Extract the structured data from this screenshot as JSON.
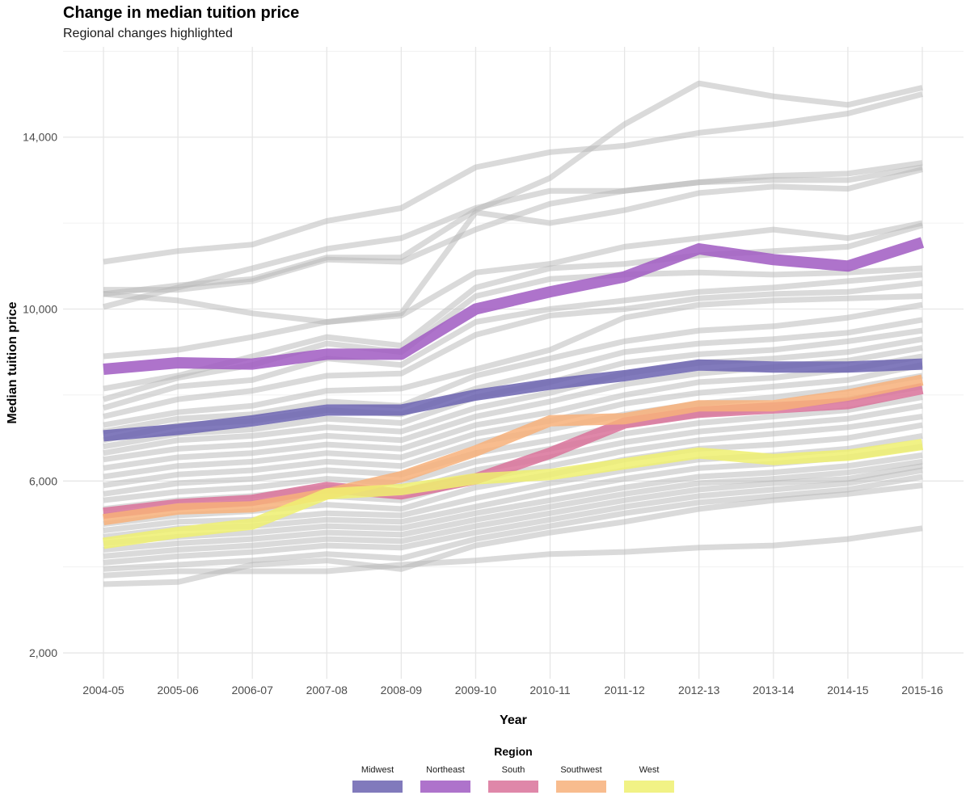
{
  "chart_data": {
    "type": "line",
    "title": "Change in median tuition price",
    "subtitle": "Regional changes highlighted",
    "xlabel": "Year",
    "ylabel": "Median tuition price",
    "categories": [
      "2004-05",
      "2005-06",
      "2006-07",
      "2007-08",
      "2008-09",
      "2009-10",
      "2010-11",
      "2011-12",
      "2012-13",
      "2013-14",
      "2014-15",
      "2015-16"
    ],
    "ylim": [
      1400,
      16100
    ],
    "yticks": [
      2000,
      6000,
      10000,
      14000
    ],
    "ytick_labels": [
      "2,000",
      "6,000",
      "10,000",
      "14,000"
    ],
    "grid": true,
    "legend": {
      "title": "Region",
      "position": "bottom"
    },
    "series": [
      {
        "name": "Midwest",
        "color": "#6B63B0",
        "values": [
          7050,
          7200,
          7400,
          7650,
          7650,
          8000,
          8250,
          8450,
          8700,
          8650,
          8650,
          8720
        ]
      },
      {
        "name": "Northeast",
        "color": "#A05AC2",
        "values": [
          8600,
          8750,
          8720,
          8950,
          8950,
          10000,
          10400,
          10750,
          11400,
          11150,
          11000,
          11550
        ]
      },
      {
        "name": "South",
        "color": "#D9729A",
        "values": [
          5250,
          5450,
          5550,
          5850,
          5700,
          6050,
          6650,
          7350,
          7600,
          7700,
          7800,
          8150
        ]
      },
      {
        "name": "Southwest",
        "color": "#F7B07A",
        "values": [
          5100,
          5350,
          5400,
          5700,
          6100,
          6700,
          7400,
          7450,
          7750,
          7750,
          8000,
          8350
        ]
      },
      {
        "name": "West",
        "color": "#EEF070",
        "values": [
          4550,
          4800,
          5000,
          5700,
          5800,
          6050,
          6150,
          6400,
          6650,
          6500,
          6600,
          6850
        ]
      }
    ],
    "background_series": [
      [
        11100,
        11350,
        11500,
        12050,
        12350,
        13300,
        13650,
        13800,
        14100,
        14300,
        14550,
        15000
      ],
      [
        10350,
        10550,
        10700,
        11200,
        11200,
        12300,
        13050,
        14300,
        15250,
        14950,
        14750,
        15150
      ],
      [
        10050,
        10500,
        10950,
        11400,
        11650,
        12350,
        12750,
        12750,
        12950,
        13100,
        13150,
        13400
      ],
      [
        10450,
        10450,
        10650,
        11150,
        11100,
        11850,
        12450,
        12750,
        12950,
        13000,
        13000,
        13300
      ],
      [
        10350,
        10200,
        9900,
        9700,
        9900,
        12250,
        12000,
        12300,
        12700,
        12850,
        12800,
        13250
      ],
      [
        8900,
        9050,
        9350,
        9700,
        9850,
        10850,
        11050,
        11450,
        11650,
        11850,
        11650,
        12000
      ],
      [
        8150,
        8450,
        8900,
        9350,
        9150,
        10500,
        10950,
        11050,
        11250,
        11350,
        11450,
        11950
      ],
      [
        7900,
        8400,
        8700,
        9200,
        9000,
        10300,
        10700,
        10800,
        10850,
        10800,
        10850,
        10950
      ],
      [
        7700,
        8200,
        8350,
        8850,
        8700,
        9700,
        10000,
        10200,
        10400,
        10500,
        10650,
        10800
      ],
      [
        7500,
        7900,
        8100,
        8450,
        8500,
        9400,
        9850,
        10000,
        10250,
        10350,
        10400,
        10600
      ],
      [
        7300,
        7600,
        7750,
        8100,
        8150,
        8600,
        9050,
        9800,
        10100,
        10200,
        10250,
        10300
      ],
      [
        7150,
        7450,
        7550,
        7850,
        7750,
        8450,
        8850,
        9250,
        9500,
        9600,
        9800,
        10100
      ],
      [
        6950,
        7300,
        7400,
        7650,
        7550,
        8150,
        8550,
        9000,
        9200,
        9300,
        9450,
        9750
      ],
      [
        6800,
        7100,
        7200,
        7450,
        7350,
        7950,
        8300,
        8750,
        8950,
        9050,
        9250,
        9500
      ],
      [
        6650,
        6950,
        7050,
        7250,
        7150,
        7700,
        8050,
        8500,
        8750,
        8850,
        9000,
        9300
      ],
      [
        6500,
        6750,
        6850,
        7050,
        6950,
        7500,
        7850,
        8250,
        8500,
        8650,
        8800,
        9100
      ],
      [
        6300,
        6550,
        6650,
        6850,
        6750,
        7300,
        7600,
        8000,
        8300,
        8400,
        8600,
        8900
      ],
      [
        6100,
        6350,
        6450,
        6650,
        6550,
        7100,
        7400,
        7800,
        8050,
        8200,
        8350,
        8700
      ],
      [
        5900,
        6150,
        6250,
        6450,
        6350,
        6900,
        7200,
        7550,
        7800,
        7950,
        8150,
        8450
      ],
      [
        5700,
        5950,
        6050,
        6250,
        6150,
        6650,
        6950,
        7300,
        7550,
        7700,
        7900,
        8200
      ],
      [
        5550,
        5750,
        5850,
        6050,
        5950,
        6450,
        6750,
        7100,
        7350,
        7500,
        7650,
        7950
      ],
      [
        5350,
        5550,
        5650,
        5850,
        5750,
        6250,
        6550,
        6900,
        7150,
        7300,
        7450,
        7750
      ],
      [
        5200,
        5400,
        5500,
        5650,
        5550,
        6050,
        6350,
        6700,
        6950,
        7100,
        7250,
        7500
      ],
      [
        5000,
        5200,
        5300,
        5450,
        5350,
        5850,
        6150,
        6500,
        6750,
        6850,
        7000,
        7300
      ],
      [
        4850,
        5050,
        5100,
        5250,
        5200,
        5600,
        5950,
        6250,
        6500,
        6600,
        6750,
        7050
      ],
      [
        4700,
        4900,
        4950,
        5100,
        5050,
        5400,
        5750,
        6050,
        6300,
        6400,
        6550,
        6800
      ],
      [
        4550,
        4700,
        4800,
        4950,
        4900,
        5250,
        5550,
        5850,
        6100,
        6200,
        6350,
        6600
      ],
      [
        4400,
        4550,
        4650,
        4800,
        4750,
        5100,
        5400,
        5700,
        5950,
        6050,
        6200,
        6450
      ],
      [
        4250,
        4400,
        4500,
        4650,
        4600,
        4950,
        5250,
        5550,
        5800,
        5950,
        6050,
        6350
      ],
      [
        4100,
        4250,
        4350,
        4500,
        4450,
        4800,
        5100,
        5400,
        5650,
        5800,
        5950,
        6250
      ],
      [
        3950,
        4050,
        4150,
        4300,
        4200,
        4650,
        4950,
        5250,
        5500,
        5650,
        5800,
        6100
      ],
      [
        3800,
        3900,
        3900,
        3900,
        4050,
        4150,
        4300,
        4350,
        4450,
        4500,
        4650,
        4900
      ],
      [
        3600,
        3650,
        4050,
        4150,
        3950,
        4500,
        4800,
        5050,
        5350,
        5550,
        5700,
        5900
      ]
    ]
  }
}
